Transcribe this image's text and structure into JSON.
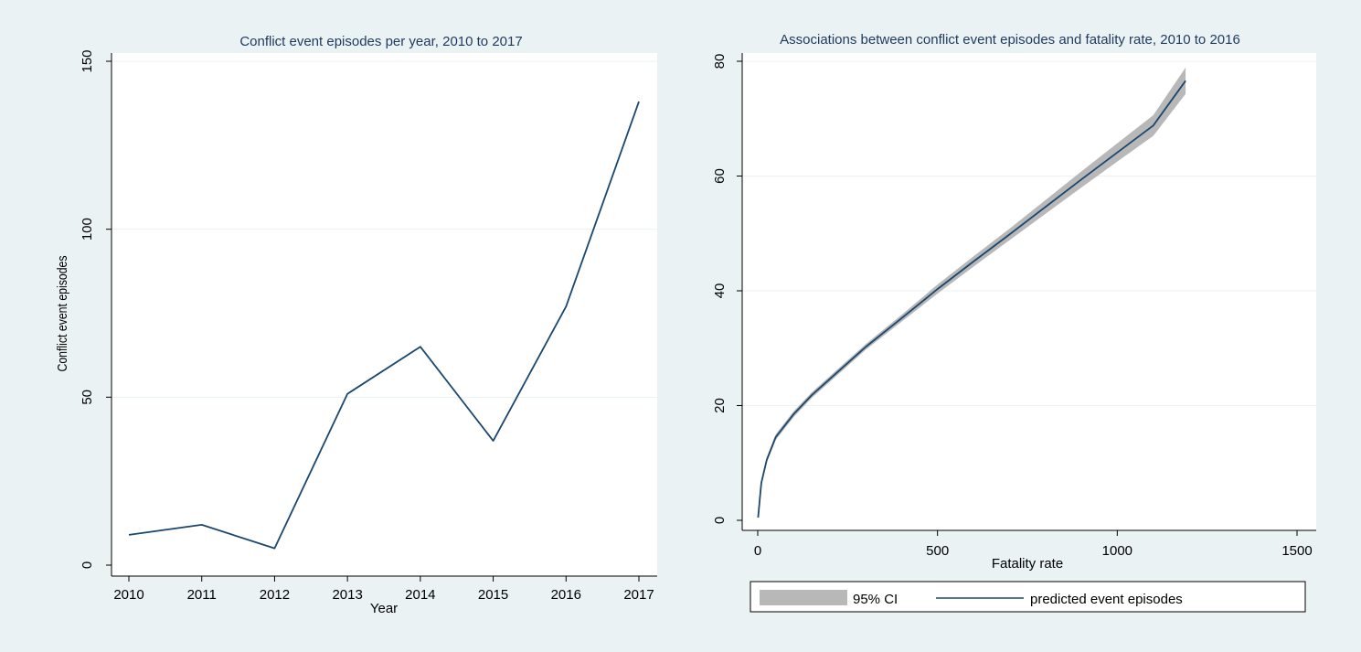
{
  "colors": {
    "background": "#eaf2f3",
    "plot_background": "#ffffff",
    "gridline": "#eaf2f3",
    "line": "#1a476f",
    "ci_band": "#b8b8b8",
    "title_text": "#1e3a5f",
    "axis_text": "#000000"
  },
  "chart_data": [
    {
      "type": "line",
      "title": "Conflict event episodes per year, 2010 to 2017",
      "xlabel": "Year",
      "ylabel": "Conflict event episodes",
      "x": [
        2010,
        2011,
        2012,
        2013,
        2014,
        2015,
        2016,
        2017
      ],
      "x_ticks": [
        "2010",
        "2011",
        "2012",
        "2013",
        "2014",
        "2015",
        "2016",
        "2017"
      ],
      "y_ticks": [
        "0",
        "50",
        "100",
        "150"
      ],
      "ylim": [
        0,
        150
      ],
      "grid": true,
      "series": [
        {
          "values": [
            9,
            12,
            5,
            51,
            65,
            37,
            77,
            138
          ]
        }
      ]
    },
    {
      "type": "line",
      "title": "Associations between conflict event episodes and fatality rate, 2010 to 2016",
      "xlabel": "Fatality rate",
      "ylabel": "",
      "x_ticks": [
        "0",
        "500",
        "1000",
        "1500"
      ],
      "y_ticks": [
        "0",
        "20",
        "40",
        "60",
        "80"
      ],
      "xlim": [
        0,
        1500
      ],
      "ylim": [
        0,
        80
      ],
      "grid": true,
      "legend_position": "bottom",
      "legend": [
        "95% CI",
        "predicted event episodes"
      ],
      "series": [
        {
          "name": "predicted event episodes",
          "x": [
            1,
            10,
            25,
            50,
            100,
            150,
            200,
            300,
            400,
            500,
            600,
            700,
            800,
            900,
            1000,
            1100,
            1190
          ],
          "y": [
            0.5,
            6.5,
            10.5,
            14.5,
            18.5,
            21.8,
            24.6,
            30.2,
            35.2,
            40.3,
            45.1,
            49.8,
            54.6,
            59.4,
            64.1,
            68.8,
            76.6
          ]
        },
        {
          "name": "95% CI",
          "x": [
            1,
            10,
            25,
            50,
            100,
            150,
            200,
            300,
            400,
            500,
            600,
            700,
            800,
            900,
            1000,
            1100,
            1190
          ],
          "lower": [
            0.2,
            6.0,
            10.0,
            14.0,
            18.0,
            21.3,
            24.1,
            29.7,
            34.6,
            39.5,
            44.2,
            48.8,
            53.4,
            58.0,
            62.5,
            67.0,
            74.3
          ],
          "upper": [
            0.8,
            7.0,
            11.0,
            15.0,
            19.0,
            22.3,
            25.1,
            30.7,
            35.8,
            41.1,
            46.0,
            50.8,
            55.8,
            60.8,
            65.7,
            70.6,
            78.9
          ]
        }
      ]
    }
  ]
}
